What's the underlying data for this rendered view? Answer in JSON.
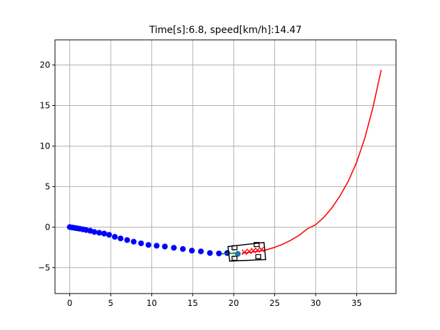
{
  "title": "Time[s]:6.8, speed[km/h]:14.47",
  "colors": {
    "reference_path": "#ff0000",
    "trajectory": "#0000ff",
    "course_segment": "#008000",
    "target_point": "#1f77b4",
    "predicted_markers": "#ff0000",
    "vehicle_outline": "#000000",
    "grid": "#b0b0b0"
  },
  "chart_data": {
    "type": "line",
    "title": "Time[s]:6.8, speed[km/h]:14.47",
    "xlabel": "",
    "ylabel": "",
    "xlim": [
      -1.8,
      39.8
    ],
    "ylim": [
      -8.2,
      23.1
    ],
    "xticks": [
      0,
      5,
      10,
      15,
      20,
      25,
      30,
      35
    ],
    "yticks": [
      -5,
      0,
      5,
      10,
      15,
      20
    ],
    "grid": true,
    "series": [
      {
        "kind": "line",
        "color": "#ff0000",
        "x": [
          21,
          22,
          23,
          24,
          25,
          26,
          27,
          28,
          29,
          30,
          31,
          32,
          33,
          34,
          35,
          36,
          37,
          38
        ],
        "y": [
          -3.2,
          -3.1,
          -3.0,
          -2.8,
          -2.5,
          -2.1,
          -1.6,
          -1.0,
          -0.2,
          0.3,
          1.2,
          2.4,
          3.9,
          5.7,
          8.0,
          11.0,
          14.8,
          19.4
        ]
      },
      {
        "kind": "scatter",
        "color": "#0000ff",
        "x": [
          0.0,
          0.3,
          0.6,
          0.9,
          1.2,
          1.6,
          2.0,
          2.5,
          3.0,
          3.6,
          4.2,
          4.8,
          5.5,
          6.2,
          7.0,
          7.8,
          8.7,
          9.6,
          10.6,
          11.6,
          12.7,
          13.8,
          14.9,
          16.0,
          17.1,
          18.2,
          19.2
        ],
        "y": [
          0.0,
          -0.05,
          -0.1,
          -0.15,
          -0.2,
          -0.28,
          -0.36,
          -0.45,
          -0.6,
          -0.7,
          -0.8,
          -0.95,
          -1.2,
          -1.4,
          -1.6,
          -1.8,
          -2.0,
          -2.2,
          -2.3,
          -2.4,
          -2.55,
          -2.7,
          -2.9,
          -3.0,
          -3.2,
          -3.25,
          -3.2
        ]
      },
      {
        "kind": "line",
        "color": "#008000",
        "x": [
          18.5,
          19.5,
          20.5
        ],
        "y": [
          -3.3,
          -3.25,
          -3.2
        ]
      },
      {
        "kind": "scatter",
        "color": "#1f77b4",
        "x": [
          20.5
        ],
        "y": [
          -3.3
        ]
      },
      {
        "kind": "x-markers",
        "color": "#ff0000",
        "x": [
          21.3,
          21.9,
          22.4,
          22.9,
          23.4
        ],
        "y": [
          -3.1,
          -3.0,
          -2.9,
          -2.85,
          -2.75
        ]
      }
    ],
    "vehicle": {
      "body": [
        [
          19.3,
          -2.4
        ],
        [
          23.7,
          -1.9
        ],
        [
          23.9,
          -4.0
        ],
        [
          19.5,
          -4.2
        ]
      ],
      "wheels": [
        [
          [
            19.8,
            -2.3
          ],
          [
            20.4,
            -2.3
          ],
          [
            20.4,
            -2.8
          ],
          [
            19.8,
            -2.8
          ]
        ],
        [
          [
            22.5,
            -1.9
          ],
          [
            23.1,
            -1.9
          ],
          [
            23.1,
            -2.4
          ],
          [
            22.5,
            -2.4
          ]
        ],
        [
          [
            19.8,
            -3.6
          ],
          [
            20.4,
            -3.6
          ],
          [
            20.4,
            -4.1
          ],
          [
            19.8,
            -4.1
          ]
        ],
        [
          [
            22.7,
            -3.4
          ],
          [
            23.3,
            -3.4
          ],
          [
            23.3,
            -3.9
          ],
          [
            22.7,
            -3.9
          ]
        ]
      ]
    }
  }
}
